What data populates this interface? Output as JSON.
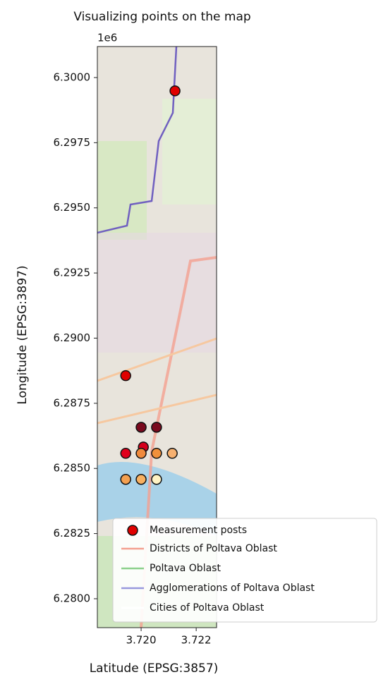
{
  "chart_data": {
    "type": "scatter",
    "title": "Visualizing points on the map",
    "x_label": "Latitude (EPSG:3857)",
    "y_label": "Longitude (EPSG:3897)",
    "offset_label": "1e6",
    "xlim": [
      3.71841,
      3.72274
    ],
    "ylim": [
      6.27889,
      6.30119
    ],
    "xticks": [
      {
        "value": 3.72,
        "label": "3.720"
      },
      {
        "value": 3.722,
        "label": "3.722"
      }
    ],
    "yticks": [
      {
        "value": 6.3,
        "label": "6.3000"
      },
      {
        "value": 6.2975,
        "label": "6.2975"
      },
      {
        "value": 6.295,
        "label": "6.2950"
      },
      {
        "value": 6.2925,
        "label": "6.2925"
      },
      {
        "value": 6.29,
        "label": "6.2900"
      },
      {
        "value": 6.2875,
        "label": "6.2875"
      },
      {
        "value": 6.285,
        "label": "6.2850"
      },
      {
        "value": 6.2825,
        "label": "6.2825"
      },
      {
        "value": 6.28,
        "label": "6.2800"
      }
    ],
    "series": [
      {
        "name": "Measurement posts",
        "color": "#e00000",
        "x": [
          3.72123,
          3.71944,
          3.72,
          3.72056,
          3.72008,
          3.71944,
          3.72,
          3.72056,
          3.72113,
          3.71944,
          3.72,
          3.72056
        ],
        "values": [
          6.29949,
          6.28856,
          6.28658,
          6.28658,
          6.28582,
          6.28558,
          6.28558,
          6.28558,
          6.28558,
          6.28458,
          6.28458,
          6.28458
        ],
        "colors": [
          "#e00000",
          "#e00000",
          "#7a0a1e",
          "#7a0a1e",
          "#d4001c",
          "#e0001c",
          "#f08a3c",
          "#f0903c",
          "#f6b070",
          "#f4a050",
          "#f8b060",
          "#fff3c4"
        ]
      }
    ],
    "legend_lines": [
      {
        "name": "Districts of Poltava Oblast",
        "color": "#f4a090"
      },
      {
        "name": "Poltava Oblast",
        "color": "#8cd08c"
      },
      {
        "name": "Agglomerations of Poltava Oblast",
        "color": "#9898dd"
      },
      {
        "name": "Cities of Poltava Oblast",
        "color": "#ffffff"
      }
    ]
  }
}
